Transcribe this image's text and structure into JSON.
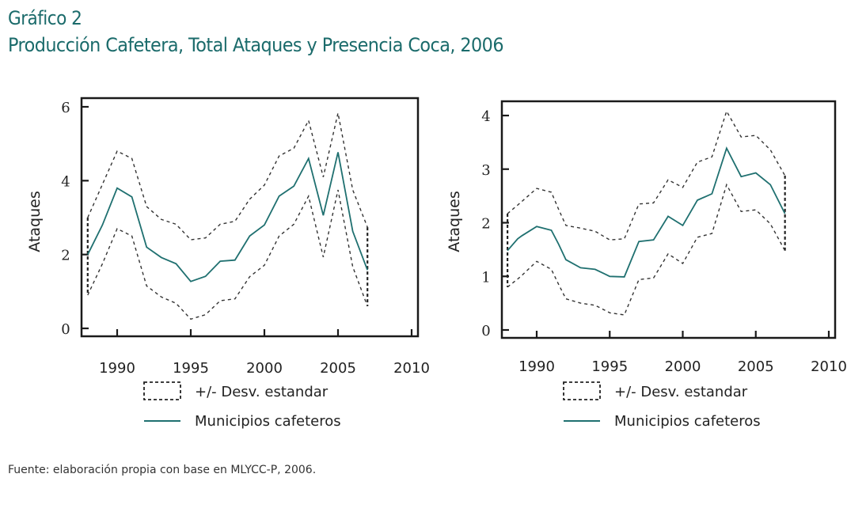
{
  "header": {
    "figure_label": "Gráfico 2",
    "title": "Producción Cafetera, Total Ataques y Presencia Coca, 2006"
  },
  "colors": {
    "title": "#1b6b6b",
    "mean_line": "#1f7070",
    "band_line": "#333333",
    "axis": "#1a1a1a"
  },
  "footer": {
    "source": "Fuente: elaboración propia con base en MLYCC-P, 2006."
  },
  "chart_data": [
    {
      "type": "line",
      "title": "",
      "xlabel": "",
      "ylabel": "Ataques",
      "xlim": [
        1987.3,
        2010.4
      ],
      "ylim": [
        0,
        6
      ],
      "xticks": [
        1990,
        1995,
        2000,
        2005,
        2010
      ],
      "xtick_labels": [
        "1990",
        "1995",
        "2000",
        "2005",
        "2010"
      ],
      "yticks": [
        0,
        2,
        4,
        6
      ],
      "ytick_labels": [
        "0",
        "2",
        "4",
        "6"
      ],
      "grid": false,
      "legend": {
        "placement": "bottom",
        "entries": [
          {
            "label": "+/- Desv. estandar",
            "style": "dashed-box"
          },
          {
            "label": "Municipios cafeteros",
            "style": "solid-line"
          }
        ]
      },
      "x": [
        1988,
        1989,
        1990,
        1991,
        1992,
        1993,
        1994,
        1995,
        1996,
        1997,
        1998,
        1999,
        2000,
        2001,
        2002,
        2003,
        2004,
        2005,
        2006,
        2007
      ],
      "series": [
        {
          "name": "Municipios cafeteros",
          "style": "solid",
          "values": [
            2.0,
            2.8,
            3.8,
            3.56,
            2.2,
            1.92,
            1.75,
            1.27,
            1.41,
            1.82,
            1.85,
            2.5,
            2.8,
            3.58,
            3.85,
            4.6,
            3.06,
            4.77,
            2.63,
            1.58
          ]
        },
        {
          "name": "+ Desv. estandar",
          "style": "dashed",
          "values": [
            3.0,
            3.9,
            4.8,
            4.6,
            3.3,
            2.95,
            2.82,
            2.4,
            2.45,
            2.82,
            2.9,
            3.5,
            3.88,
            4.67,
            4.88,
            5.63,
            4.1,
            5.83,
            3.75,
            2.74
          ]
        },
        {
          "name": "- Desv. estandar",
          "style": "dashed",
          "values": [
            0.9,
            1.75,
            2.7,
            2.5,
            1.15,
            0.85,
            0.68,
            0.25,
            0.37,
            0.75,
            0.8,
            1.4,
            1.71,
            2.5,
            2.82,
            3.58,
            1.93,
            3.75,
            1.67,
            0.6
          ]
        }
      ]
    },
    {
      "type": "line",
      "title": "",
      "xlabel": "",
      "ylabel": "Ataques",
      "xlim": [
        1987.0,
        2010.4
      ],
      "ylim": [
        0,
        4
      ],
      "xticks": [
        1990,
        1995,
        2000,
        2005,
        2010
      ],
      "xtick_labels": [
        "1990",
        "1995",
        "2000",
        "2005",
        "2010"
      ],
      "yticks": [
        0,
        1,
        2,
        3,
        4
      ],
      "ytick_labels": [
        "0",
        "1",
        "2",
        "3",
        "4"
      ],
      "grid": false,
      "legend": {
        "placement": "bottom",
        "entries": [
          {
            "label": "+/- Desv. estandar",
            "style": "dashed-box"
          },
          {
            "label": "Municipios cafeteros",
            "style": "solid-line"
          }
        ]
      },
      "x": [
        1988,
        1988.7,
        1989,
        1990,
        1991,
        1991.5,
        1992,
        1993,
        1994,
        1995,
        1996,
        1997,
        1998,
        1999,
        2000,
        2001,
        2002,
        2003,
        2004,
        2005,
        2006,
        2007
      ],
      "series": [
        {
          "name": "Municipios cafeteros",
          "style": "solid",
          "values": [
            1.48,
            1.7,
            1.76,
            1.93,
            1.86,
            1.6,
            1.31,
            1.16,
            1.13,
            1.0,
            0.99,
            1.65,
            1.68,
            2.12,
            1.95,
            2.42,
            2.54,
            3.39,
            2.86,
            2.93,
            2.71,
            2.17
          ]
        },
        {
          "name": "+ Desv. estandar",
          "style": "dashed",
          "values": [
            2.17,
            2.33,
            2.4,
            2.64,
            2.57,
            2.25,
            1.95,
            1.9,
            1.84,
            1.68,
            1.7,
            2.35,
            2.37,
            2.8,
            2.66,
            3.13,
            3.23,
            4.08,
            3.6,
            3.63,
            3.36,
            2.88
          ]
        },
        {
          "name": "- Desv. estandar",
          "style": "dashed",
          "values": [
            0.8,
            0.95,
            1.02,
            1.28,
            1.13,
            0.85,
            0.58,
            0.5,
            0.46,
            0.32,
            0.28,
            0.94,
            0.97,
            1.42,
            1.24,
            1.73,
            1.8,
            2.71,
            2.21,
            2.24,
            1.98,
            1.48
          ]
        }
      ]
    }
  ]
}
